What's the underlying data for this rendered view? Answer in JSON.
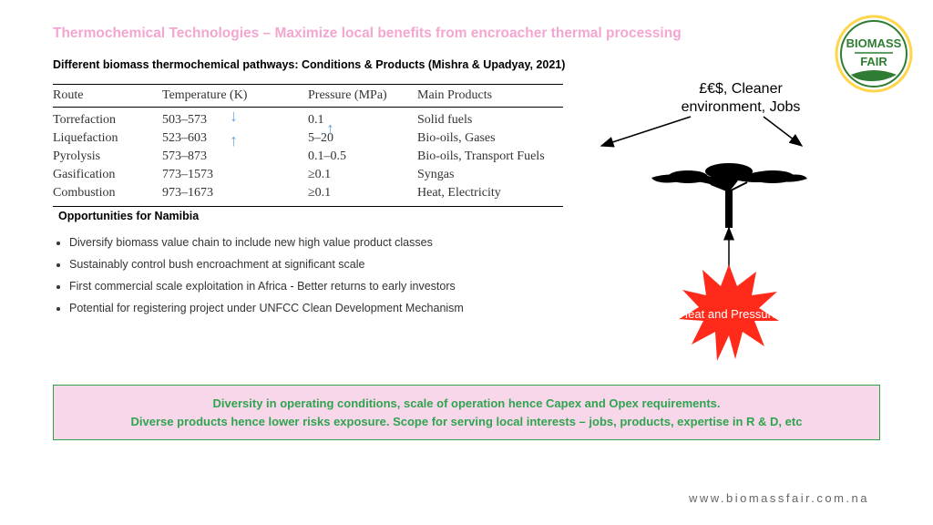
{
  "title": "Thermochemical Technologies – Maximize local benefits from encroacher thermal processing",
  "subtitle": "Different biomass thermochemical pathways: Conditions & Products (Mishra & Upadyay, 2021)",
  "table": {
    "columns": [
      "Route",
      "Temperature (K)",
      "Pressure (MPa)",
      "Main Products"
    ],
    "rows": [
      [
        "Torrefaction",
        "503–573",
        "0.1",
        "Solid fuels"
      ],
      [
        "Liquefaction",
        "523–603",
        "5–20",
        "Bio-oils, Gases"
      ],
      [
        "Pyrolysis",
        "573–873",
        "0.1–0.5",
        "Bio-oils, Transport Fuels"
      ],
      [
        "Gasification",
        "773–1573",
        "≥0.1",
        "Syngas"
      ],
      [
        "Combustion",
        "973–1673",
        "≥0.1",
        "Heat, Electricity"
      ]
    ],
    "arrow_color": "#6aa7db"
  },
  "opportunities": {
    "heading": "Opportunities for Namibia",
    "items": [
      "Diversify biomass value chain to include new high value product classes",
      "Sustainably control bush encroachment at significant scale",
      "First commercial scale exploitation in Africa - Better returns to early investors",
      "Potential for registering project under UNFCC Clean Development Mechanism"
    ]
  },
  "callout": "£€$, Cleaner environment, Jobs",
  "starburst": {
    "label": "Heat and Pressure",
    "fill": "#ff2a1a",
    "text_color": "#ffffff"
  },
  "bottom_box": {
    "line1": "Diversity in operating conditions, scale of operation hence Capex and Opex requirements.",
    "line2": "Diverse products hence lower risks exposure. Scope for serving local interests – jobs, products, expertise in R & D, etc",
    "bg": "#f9d7ea",
    "border": "#2ea44f",
    "text": "#2ea44f"
  },
  "footer_url": "www.biomassfair.com.na",
  "logo": {
    "top": "BIOMASS",
    "bottom": "FAIR",
    "ring_outer": "#ffd54a",
    "ring_inner": "#2e7d32",
    "text": "#2e7d32",
    "leaf": "#2e7d32"
  },
  "colors": {
    "title": "#f4a6d0",
    "arrow_stroke": "#000000"
  }
}
